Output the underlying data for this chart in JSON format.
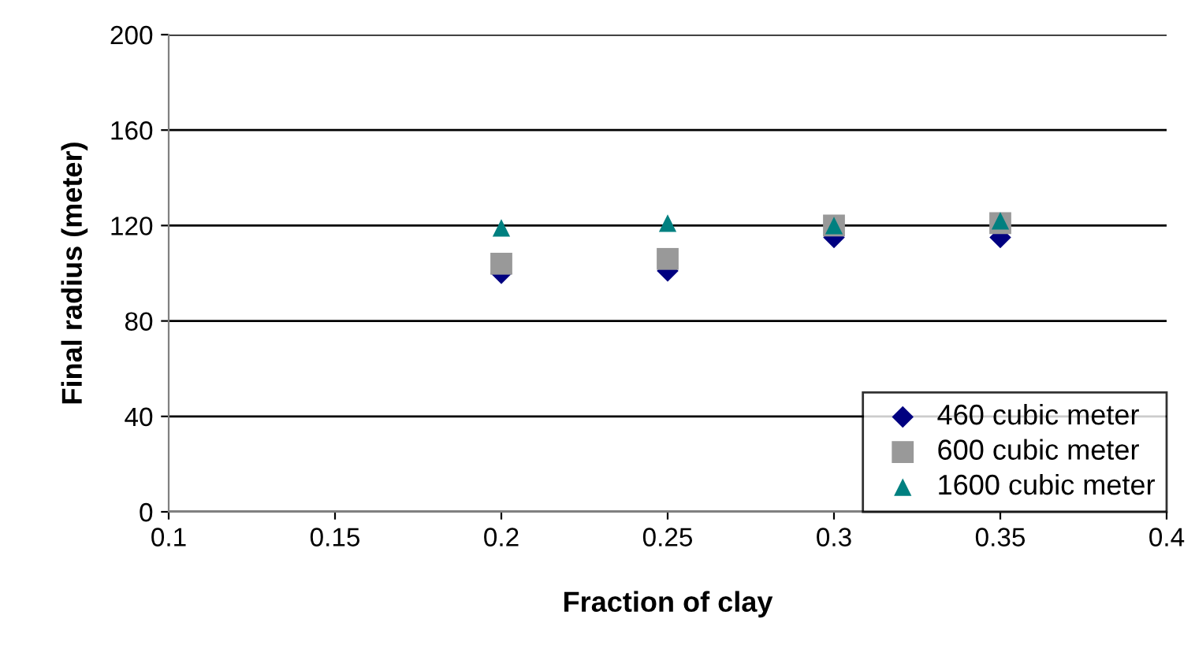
{
  "chart_data": {
    "type": "scatter",
    "xlabel": "Fraction of clay",
    "ylabel": "Final radius (meter)",
    "x": [
      0.2,
      0.25,
      0.3,
      0.35
    ],
    "series": [
      {
        "name": "460 cubic meter",
        "color": "#000080",
        "marker": "diamond",
        "values": [
          100,
          101,
          115,
          115
        ]
      },
      {
        "name": "600 cubic meter",
        "color": "#999999",
        "marker": "square",
        "values": [
          104,
          106,
          120,
          121
        ]
      },
      {
        "name": "1600 cubic meter",
        "color": "#008080",
        "marker": "triangle",
        "values": [
          119,
          121,
          120,
          122
        ]
      }
    ],
    "xlim": [
      0.1,
      0.4
    ],
    "xticks": [
      0.1,
      0.15,
      0.2,
      0.25,
      0.3,
      0.35,
      0.4
    ],
    "ylim": [
      0,
      200
    ],
    "yticks": [
      0,
      40,
      80,
      120,
      160,
      200
    ],
    "grid": "y",
    "legend": "bottom right"
  }
}
